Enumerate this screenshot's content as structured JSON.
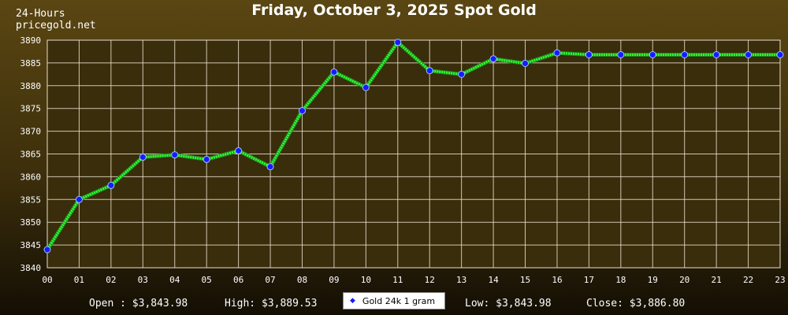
{
  "header": {
    "title": "Friday, October 3, 2025 Spot Gold",
    "period": "24-Hours",
    "site": "pricegold.net"
  },
  "stats": {
    "open": "Open : $3,843.98",
    "high": "High: $3,889.53",
    "low": "Low: $3,843.98",
    "close": "Close: $3,886.80"
  },
  "legend": {
    "label": "Gold 24k 1 gram"
  },
  "colors": {
    "line": "#33ff33",
    "marker_fill": "#1a1aff",
    "marker_stroke": "#8ec8ff",
    "plot_bg": "#3a2d0b",
    "grid": "#e8e0cc",
    "axis_text": "#ffffff"
  },
  "chart_data": {
    "type": "line",
    "x": [
      "00",
      "01",
      "02",
      "03",
      "04",
      "05",
      "06",
      "07",
      "08",
      "09",
      "10",
      "11",
      "12",
      "13",
      "14",
      "15",
      "16",
      "17",
      "18",
      "19",
      "20",
      "21",
      "22",
      "23"
    ],
    "series": [
      {
        "name": "Gold 24k 1 gram",
        "values": [
          3843.98,
          3855.0,
          3858.1,
          3864.3,
          3864.8,
          3863.8,
          3865.7,
          3862.2,
          3874.5,
          3883.0,
          3879.6,
          3889.53,
          3883.3,
          3882.5,
          3885.9,
          3884.9,
          3887.2,
          3886.8,
          3886.8,
          3886.8,
          3886.8,
          3886.8,
          3886.8,
          3886.8
        ]
      }
    ],
    "ylim": [
      3840,
      3890
    ],
    "yticks": [
      3840,
      3845,
      3850,
      3855,
      3860,
      3865,
      3870,
      3875,
      3880,
      3885,
      3890
    ],
    "grid": true,
    "legend_position": "bottom-center"
  }
}
